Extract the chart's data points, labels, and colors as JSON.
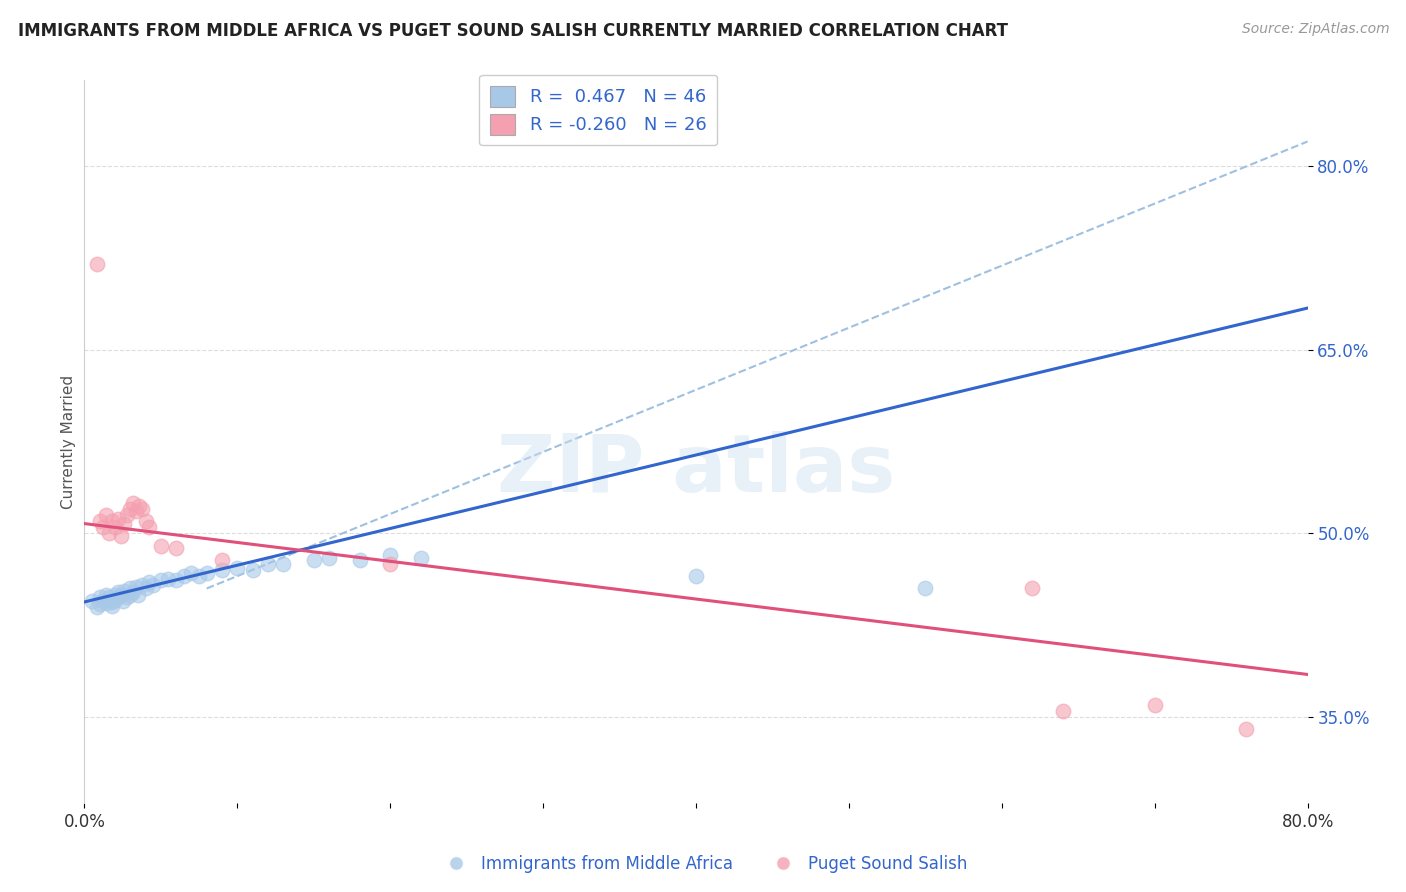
{
  "title": "IMMIGRANTS FROM MIDDLE AFRICA VS PUGET SOUND SALISH CURRENTLY MARRIED CORRELATION CHART",
  "source": "Source: ZipAtlas.com",
  "ylabel": "Currently Married",
  "xlim": [
    0.0,
    0.8
  ],
  "ylim": [
    0.28,
    0.87
  ],
  "ytick_right_vals": [
    0.35,
    0.5,
    0.65,
    0.8
  ],
  "ytick_right_labels": [
    "35.0%",
    "50.0%",
    "65.0%",
    "80.0%"
  ],
  "legend_r1": "R =  0.467",
  "legend_n1": "N = 46",
  "legend_r2": "R = -0.260",
  "legend_n2": "N = 26",
  "blue_color": "#a8c8e8",
  "pink_color": "#f4a0b0",
  "blue_line_color": "#3366cc",
  "pink_line_color": "#e0507a",
  "dash_line_color": "#a0c0e0",
  "blue_scatter": [
    [
      0.005,
      0.445
    ],
    [
      0.008,
      0.44
    ],
    [
      0.01,
      0.448
    ],
    [
      0.01,
      0.442
    ],
    [
      0.012,
      0.445
    ],
    [
      0.014,
      0.45
    ],
    [
      0.015,
      0.443
    ],
    [
      0.016,
      0.448
    ],
    [
      0.018,
      0.444
    ],
    [
      0.018,
      0.441
    ],
    [
      0.02,
      0.446
    ],
    [
      0.02,
      0.45
    ],
    [
      0.022,
      0.448
    ],
    [
      0.022,
      0.452
    ],
    [
      0.024,
      0.45
    ],
    [
      0.025,
      0.445
    ],
    [
      0.026,
      0.453
    ],
    [
      0.028,
      0.448
    ],
    [
      0.03,
      0.45
    ],
    [
      0.03,
      0.455
    ],
    [
      0.032,
      0.452
    ],
    [
      0.034,
      0.456
    ],
    [
      0.035,
      0.45
    ],
    [
      0.038,
      0.458
    ],
    [
      0.04,
      0.455
    ],
    [
      0.042,
      0.46
    ],
    [
      0.045,
      0.458
    ],
    [
      0.05,
      0.462
    ],
    [
      0.055,
      0.463
    ],
    [
      0.06,
      0.462
    ],
    [
      0.065,
      0.465
    ],
    [
      0.07,
      0.468
    ],
    [
      0.075,
      0.465
    ],
    [
      0.08,
      0.468
    ],
    [
      0.09,
      0.47
    ],
    [
      0.1,
      0.472
    ],
    [
      0.11,
      0.47
    ],
    [
      0.12,
      0.475
    ],
    [
      0.13,
      0.475
    ],
    [
      0.15,
      0.478
    ],
    [
      0.16,
      0.48
    ],
    [
      0.18,
      0.478
    ],
    [
      0.2,
      0.482
    ],
    [
      0.22,
      0.48
    ],
    [
      0.4,
      0.465
    ],
    [
      0.55,
      0.455
    ]
  ],
  "pink_scatter": [
    [
      0.008,
      0.72
    ],
    [
      0.01,
      0.51
    ],
    [
      0.012,
      0.505
    ],
    [
      0.014,
      0.515
    ],
    [
      0.016,
      0.5
    ],
    [
      0.018,
      0.51
    ],
    [
      0.02,
      0.505
    ],
    [
      0.022,
      0.512
    ],
    [
      0.024,
      0.498
    ],
    [
      0.026,
      0.508
    ],
    [
      0.028,
      0.515
    ],
    [
      0.03,
      0.52
    ],
    [
      0.032,
      0.525
    ],
    [
      0.034,
      0.518
    ],
    [
      0.036,
      0.522
    ],
    [
      0.038,
      0.52
    ],
    [
      0.04,
      0.51
    ],
    [
      0.042,
      0.505
    ],
    [
      0.05,
      0.49
    ],
    [
      0.06,
      0.488
    ],
    [
      0.09,
      0.478
    ],
    [
      0.2,
      0.475
    ],
    [
      0.62,
      0.455
    ],
    [
      0.64,
      0.355
    ],
    [
      0.7,
      0.36
    ],
    [
      0.76,
      0.34
    ]
  ],
  "watermark_text": "ZIP atlas",
  "background_color": "#ffffff",
  "grid_color": "#dddddd"
}
